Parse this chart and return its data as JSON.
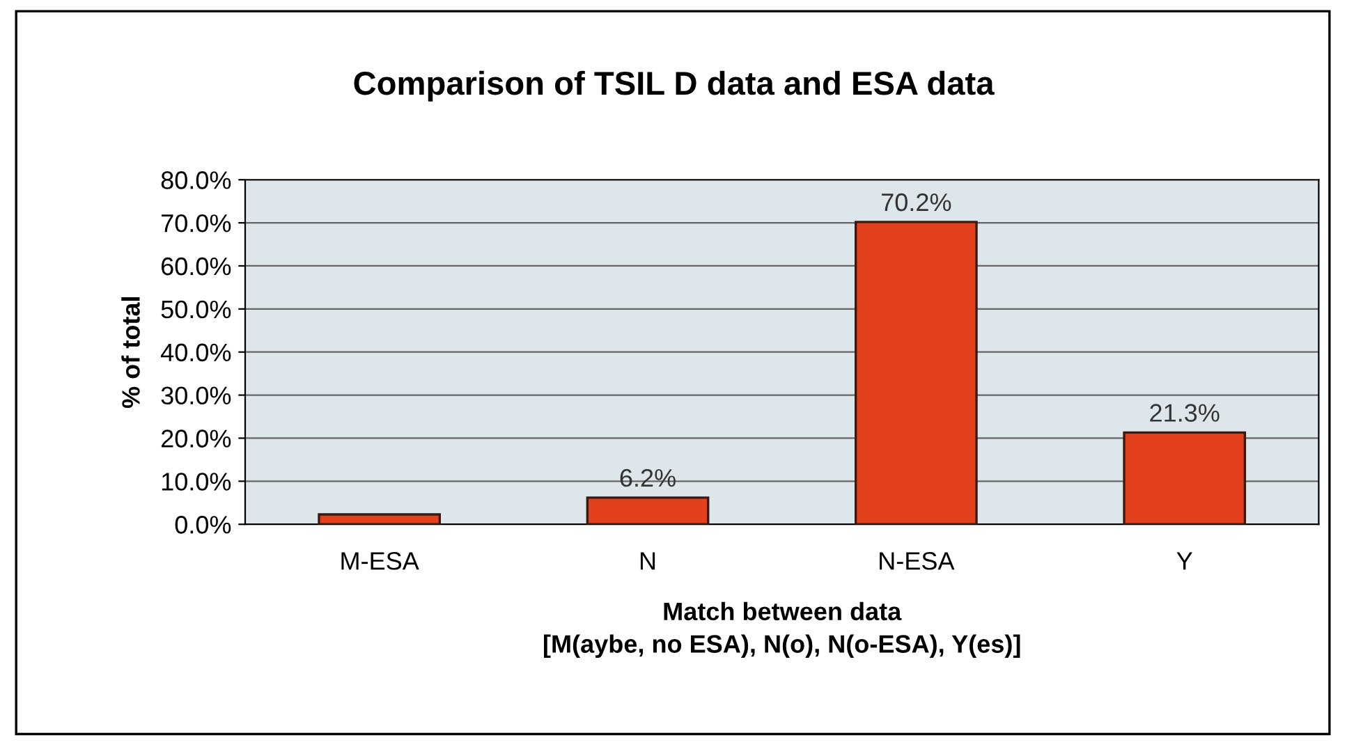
{
  "chart_data": {
    "type": "bar",
    "title": "Comparison of TSIL D data and ESA data",
    "xlabel": "Match between data\n[M(aybe, no ESA), N(o), N(o-ESA), Y(es)]",
    "ylabel": "% of total",
    "categories": [
      "M-ESA",
      "N",
      "N-ESA",
      "Y"
    ],
    "values": [
      2.3,
      6.2,
      70.2,
      21.3
    ],
    "value_labels": [
      null,
      "6.2%",
      "70.2%",
      "21.3%"
    ],
    "color": "#e2401c",
    "ylim": [
      0,
      80
    ],
    "yticks": [
      {
        "value": 0,
        "label": "0.0%"
      },
      {
        "value": 10,
        "label": "10.0%"
      },
      {
        "value": 20,
        "label": "20.0%"
      },
      {
        "value": 30,
        "label": "30.0%"
      },
      {
        "value": 40,
        "label": "40.0%"
      },
      {
        "value": 50,
        "label": "50.0%"
      },
      {
        "value": 60,
        "label": "60.0%"
      },
      {
        "value": 70,
        "label": "70.0%"
      },
      {
        "value": 80,
        "label": "80.0%"
      }
    ],
    "grid": "y"
  }
}
